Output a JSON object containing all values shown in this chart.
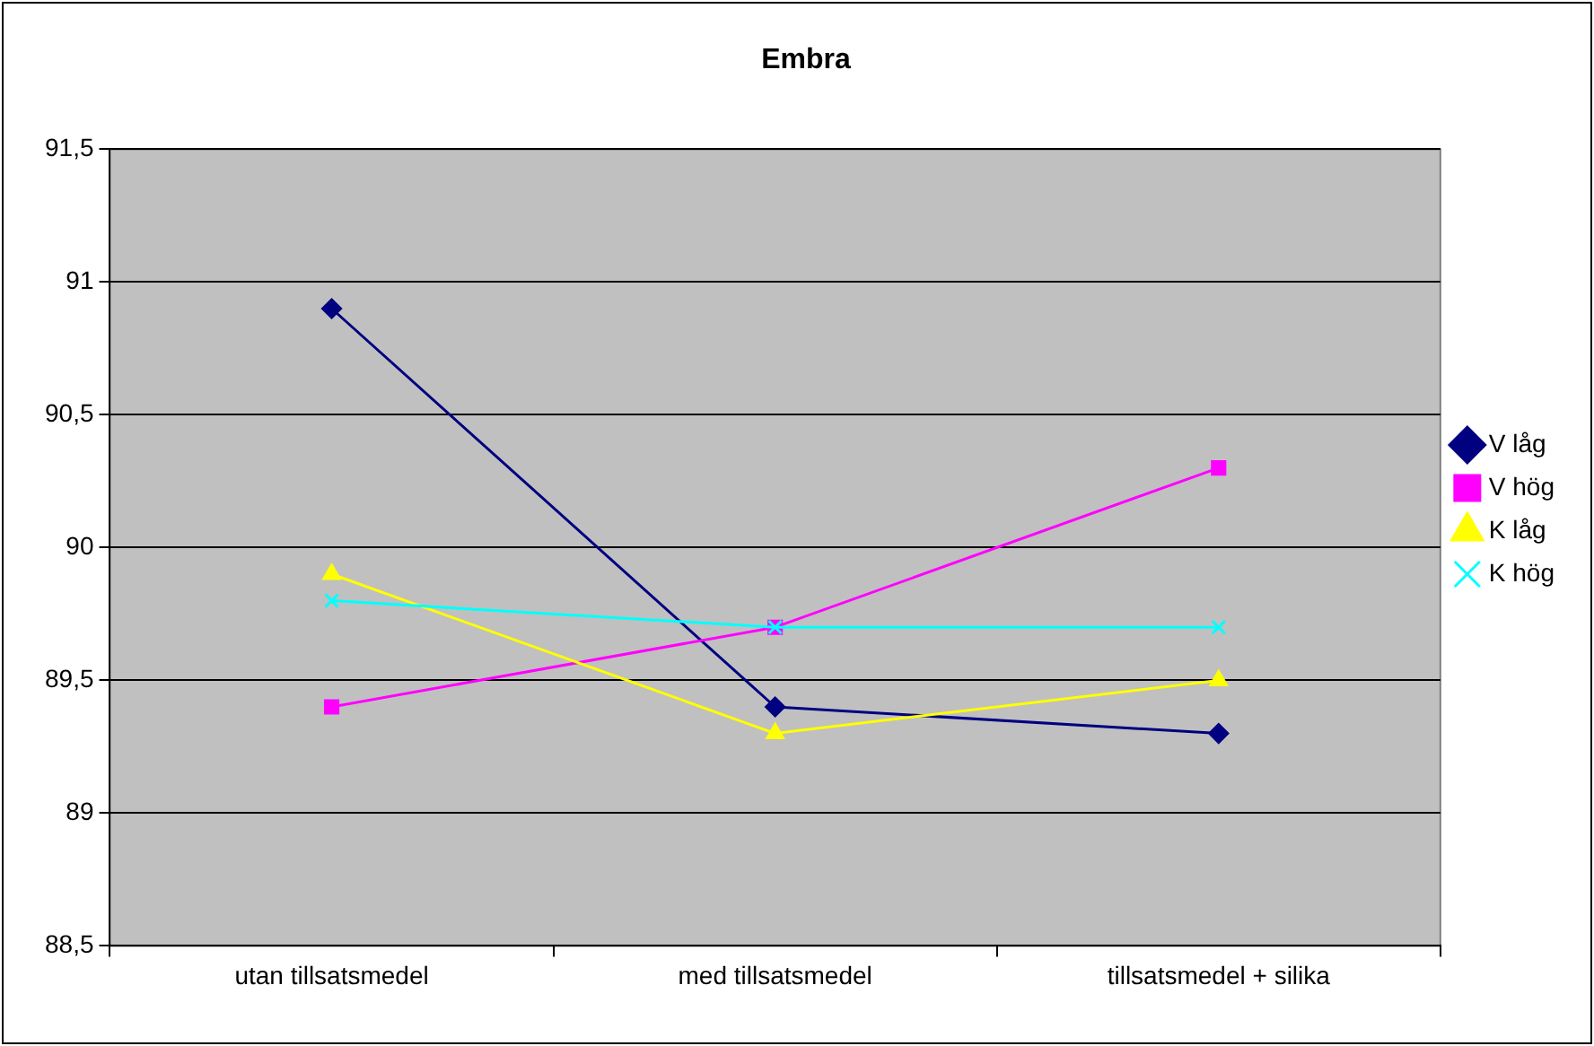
{
  "chart_data": {
    "type": "line",
    "title": "Embra",
    "categories": [
      "utan tillsatsmedel",
      "med tillsatsmedel",
      "tillsatsmedel + silika"
    ],
    "series": [
      {
        "name": "V låg",
        "color": "#000080",
        "marker": "diamond",
        "values": [
          90.9,
          89.4,
          89.3
        ]
      },
      {
        "name": "V hög",
        "color": "#ff00ff",
        "marker": "square",
        "values": [
          89.4,
          89.7,
          90.3
        ]
      },
      {
        "name": "K låg",
        "color": "#ffff00",
        "marker": "triangle",
        "values": [
          89.9,
          89.3,
          89.5
        ]
      },
      {
        "name": "K hög",
        "color": "#00ffff",
        "marker": "cross",
        "values": [
          89.8,
          89.7,
          89.7
        ]
      }
    ],
    "ylim": [
      88.5,
      91.5
    ],
    "yticks": [
      {
        "value": 88.5,
        "label": "88,5"
      },
      89,
      {
        "value": 89.5,
        "label": "89,5"
      },
      90,
      {
        "value": 90.5,
        "label": "90,5"
      },
      91,
      {
        "value": 91.5,
        "label": "91,5"
      }
    ],
    "grid": "y",
    "legend": "right",
    "line_style": "solid"
  }
}
